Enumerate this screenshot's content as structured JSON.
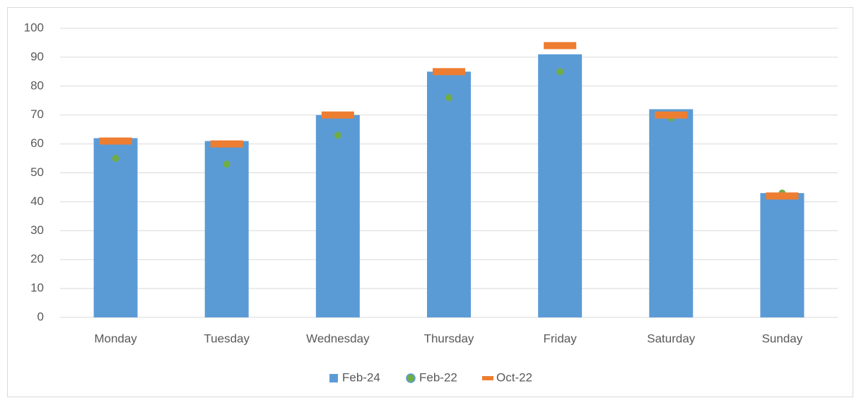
{
  "chart_data": {
    "type": "bar",
    "categories": [
      "Monday",
      "Tuesday",
      "Wednesday",
      "Thursday",
      "Friday",
      "Saturday",
      "Sunday"
    ],
    "series": [
      {
        "name": "Feb-24",
        "type": "bar",
        "color": "#5b9bd5",
        "values": [
          62,
          61,
          70,
          85,
          91,
          72,
          43
        ]
      },
      {
        "name": "Feb-22",
        "type": "dot",
        "color": "#70ad47",
        "values": [
          55,
          53,
          63,
          76,
          85,
          69,
          43
        ]
      },
      {
        "name": "Oct-22",
        "type": "dash",
        "color": "#ed7d31",
        "values": [
          61,
          60,
          70,
          85,
          94,
          70,
          42
        ]
      }
    ],
    "ylim": [
      0,
      100
    ],
    "yticks": [
      0,
      10,
      20,
      30,
      40,
      50,
      60,
      70,
      80,
      90,
      100
    ],
    "grid": true,
    "legend": "bottom"
  }
}
